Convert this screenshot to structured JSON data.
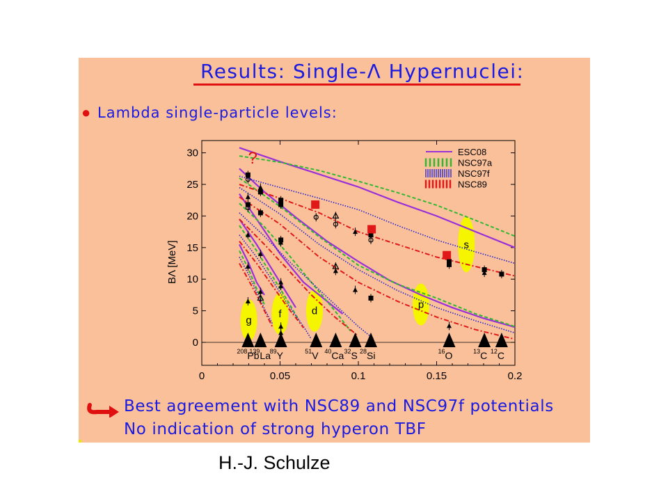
{
  "slide": {
    "title": "Results: Single-Λ Hypernuclei:",
    "bullet_text": "Lambda single-particle levels:",
    "conclusion_1": "Best agreement with NSC89 and NSC97f potentials",
    "conclusion_2": "No indication of strong hyperon TBF",
    "author": "H.-J. Schulze"
  },
  "colors": {
    "slide_bg": "#f9c09a",
    "title_text": "#1a1ae0",
    "accent_red": "#e01010",
    "esc08": "#9a30d8",
    "nsc97a": "#30b830",
    "nsc97f": "#2020d0",
    "nsc89": "#e01818",
    "highlight": "#f5f500"
  },
  "chart_data": {
    "type": "line",
    "title": "",
    "xlabel": "",
    "ylabel": "BΛ [MeV]",
    "xlim": [
      0,
      0.2
    ],
    "ylim": [
      -3,
      32
    ],
    "x_ticks": [
      "0",
      "0.05",
      "0.1",
      "0.15",
      "0.2"
    ],
    "y_ticks": [
      "0",
      "5",
      "10",
      "15",
      "20",
      "25",
      "30"
    ],
    "question_mark": "?",
    "legend": [
      {
        "name": "ESC08",
        "style": "solid",
        "color": "#9a30d8"
      },
      {
        "name": "NSC97a",
        "style": "dashed",
        "color": "#30b830"
      },
      {
        "name": "NSC97f",
        "style": "dotted",
        "color": "#2020d0"
      },
      {
        "name": "NSC89",
        "style": "dashdot",
        "color": "#e01818"
      }
    ],
    "shells": [
      {
        "label": "s",
        "x": 0.169,
        "y": 15.5
      },
      {
        "label": "p",
        "x": 0.14,
        "y": 6.0
      },
      {
        "label": "d",
        "x": 0.072,
        "y": 5.0
      },
      {
        "label": "f",
        "x": 0.05,
        "y": 4.5
      },
      {
        "label": "g",
        "x": 0.03,
        "y": 3.5
      }
    ],
    "nuclei": [
      {
        "mass": "208",
        "sym": "Pb",
        "x": 0.0295
      },
      {
        "mass": "139",
        "sym": "La",
        "x": 0.0375
      },
      {
        "mass": "89",
        "sym": "Y",
        "x": 0.0505
      },
      {
        "mass": "51",
        "sym": "V",
        "x": 0.073
      },
      {
        "mass": "40",
        "sym": "Ca",
        "x": 0.0855
      },
      {
        "mass": "32",
        "sym": "S",
        "x": 0.098
      },
      {
        "mass": "28",
        "sym": "Si",
        "x": 0.108
      },
      {
        "mass": "16",
        "sym": "O",
        "x": 0.158
      },
      {
        "mass": "13",
        "sym": "C",
        "x": 0.1805
      },
      {
        "mass": "12",
        "sym": "C",
        "x": 0.1915
      }
    ],
    "series": [
      {
        "model": "ESC08",
        "shell": "s",
        "x": [
          0.024,
          0.05,
          0.075,
          0.1,
          0.125,
          0.15,
          0.175,
          0.2
        ],
        "y": [
          30.8,
          28.6,
          26.6,
          24.6,
          22.2,
          20.0,
          17.5,
          15.0
        ]
      },
      {
        "model": "ESC08",
        "shell": "p",
        "x": [
          0.024,
          0.04,
          0.06,
          0.08,
          0.1,
          0.12,
          0.14,
          0.16,
          0.18,
          0.2
        ],
        "y": [
          27.5,
          23.8,
          19.8,
          16.0,
          12.8,
          9.8,
          7.5,
          5.5,
          3.8,
          2.4
        ]
      },
      {
        "model": "ESC08",
        "shell": "d",
        "x": [
          0.024,
          0.035,
          0.05,
          0.065,
          0.08,
          0.09
        ],
        "y": [
          23.5,
          19.5,
          14.0,
          9.5,
          6.5,
          4.5
        ]
      },
      {
        "model": "ESC08",
        "shell": "f",
        "x": [
          0.024,
          0.035,
          0.045,
          0.055,
          0.06
        ],
        "y": [
          19.5,
          15.5,
          11.5,
          7.5,
          5.5
        ]
      },
      {
        "model": "ESC08",
        "shell": "g",
        "x": [
          0.024,
          0.03,
          0.035,
          0.04
        ],
        "y": [
          15.5,
          12.5,
          9.5,
          7.5
        ]
      },
      {
        "model": "NSC97a",
        "shell": "s",
        "x": [
          0.024,
          0.05,
          0.075,
          0.1,
          0.125,
          0.15,
          0.175,
          0.2
        ],
        "y": [
          29.5,
          28.5,
          27.2,
          25.5,
          23.7,
          21.7,
          19.3,
          16.8
        ]
      },
      {
        "model": "NSC97a",
        "shell": "p",
        "x": [
          0.024,
          0.05,
          0.075,
          0.1,
          0.125,
          0.15,
          0.175,
          0.2
        ],
        "y": [
          26.0,
          21.5,
          16.7,
          12.2,
          9.2,
          7.0,
          4.5,
          2.5
        ]
      },
      {
        "model": "NSC97a",
        "shell": "d",
        "x": [
          0.024,
          0.04,
          0.055,
          0.07,
          0.085,
          0.095
        ],
        "y": [
          22.0,
          18.3,
          14.0,
          9.5,
          5.0,
          1.8
        ]
      },
      {
        "model": "NSC97a",
        "shell": "f",
        "x": [
          0.024,
          0.035,
          0.045,
          0.055,
          0.062
        ],
        "y": [
          18.5,
          14.5,
          10.5,
          6.5,
          3.5
        ]
      },
      {
        "model": "NSC97a",
        "shell": "g",
        "x": [
          0.024,
          0.03,
          0.035,
          0.04
        ],
        "y": [
          14.5,
          11.5,
          8.5,
          6.0
        ]
      },
      {
        "model": "NSC97f",
        "shell": "s",
        "x": [
          0.024,
          0.05,
          0.075,
          0.1,
          0.125,
          0.15,
          0.175,
          0.2
        ],
        "y": [
          26.3,
          24.5,
          22.8,
          21.0,
          18.5,
          16.2,
          14.3,
          12.5
        ]
      },
      {
        "model": "NSC97f",
        "shell": "p",
        "x": [
          0.024,
          0.05,
          0.075,
          0.1,
          0.125,
          0.15,
          0.175,
          0.2
        ],
        "y": [
          24.5,
          20.3,
          15.5,
          11.5,
          8.2,
          5.5,
          3.4,
          1.5
        ]
      },
      {
        "model": "NSC97f",
        "shell": "d",
        "x": [
          0.024,
          0.04,
          0.055,
          0.07,
          0.085,
          0.1,
          0.11
        ],
        "y": [
          20.5,
          16.8,
          13.0,
          9.5,
          6.0,
          2.5,
          0.5
        ]
      },
      {
        "model": "NSC97f",
        "shell": "f",
        "x": [
          0.024,
          0.035,
          0.045,
          0.055,
          0.065,
          0.07
        ],
        "y": [
          17.0,
          13.5,
          9.8,
          6.0,
          2.5,
          0.5
        ]
      },
      {
        "model": "NSC97f",
        "shell": "g",
        "x": [
          0.024,
          0.03,
          0.035,
          0.04,
          0.045
        ],
        "y": [
          13.5,
          10.7,
          8.0,
          5.3,
          3.0
        ]
      },
      {
        "model": "NSC89",
        "shell": "s",
        "x": [
          0.024,
          0.05,
          0.075,
          0.1,
          0.125,
          0.15,
          0.175,
          0.2
        ],
        "y": [
          25.0,
          22.8,
          20.5,
          17.5,
          15.5,
          13.5,
          12.0,
          10.5
        ]
      },
      {
        "model": "NSC89",
        "shell": "p",
        "x": [
          0.024,
          0.05,
          0.075,
          0.1,
          0.125,
          0.15,
          0.175,
          0.2
        ],
        "y": [
          23.0,
          18.7,
          13.5,
          9.5,
          6.5,
          4.0,
          2.0,
          0.5
        ]
      },
      {
        "model": "NSC89",
        "shell": "d",
        "x": [
          0.024,
          0.04,
          0.055,
          0.07,
          0.085,
          0.1
        ],
        "y": [
          19.5,
          15.5,
          11.5,
          7.5,
          4.0,
          1.0
        ]
      },
      {
        "model": "NSC89",
        "shell": "f",
        "x": [
          0.024,
          0.035,
          0.045,
          0.055,
          0.065
        ],
        "y": [
          16.0,
          12.5,
          9.0,
          5.5,
          2.3
        ]
      },
      {
        "model": "NSC89",
        "shell": "g",
        "x": [
          0.024,
          0.03,
          0.035,
          0.04,
          0.045
        ],
        "y": [
          12.5,
          9.8,
          7.5,
          5.0,
          2.5
        ]
      }
    ],
    "experiment_points": [
      {
        "x": 0.0295,
        "y": 26.5,
        "m": "sq"
      },
      {
        "x": 0.0295,
        "y": 25.8,
        "m": "circ"
      },
      {
        "x": 0.0295,
        "y": 23.0,
        "m": "tri"
      },
      {
        "x": 0.0295,
        "y": 21.8,
        "m": "sq"
      },
      {
        "x": 0.0295,
        "y": 21.3,
        "m": "circ"
      },
      {
        "x": 0.0295,
        "y": 17.0,
        "m": "tri"
      },
      {
        "x": 0.0295,
        "y": 12.0,
        "m": "tri"
      },
      {
        "x": 0.0295,
        "y": 6.5,
        "m": "tri"
      },
      {
        "x": 0.0375,
        "y": 24.5,
        "m": "tri"
      },
      {
        "x": 0.0375,
        "y": 23.8,
        "m": "sq"
      },
      {
        "x": 0.0375,
        "y": 20.5,
        "m": "sq"
      },
      {
        "x": 0.0375,
        "y": 14.0,
        "m": "tri"
      },
      {
        "x": 0.0375,
        "y": 8.0,
        "m": "tri"
      },
      {
        "x": 0.0375,
        "y": 7.0,
        "m": "otri"
      },
      {
        "x": 0.0505,
        "y": 22.5,
        "m": "sq"
      },
      {
        "x": 0.0505,
        "y": 21.8,
        "m": "sq"
      },
      {
        "x": 0.0505,
        "y": 16.2,
        "m": "sq"
      },
      {
        "x": 0.0505,
        "y": 15.8,
        "m": "tri"
      },
      {
        "x": 0.0505,
        "y": 9.5,
        "m": "tri"
      },
      {
        "x": 0.0505,
        "y": 8.9,
        "m": "tri"
      },
      {
        "x": 0.0505,
        "y": 2.5,
        "m": "tri"
      },
      {
        "x": 0.0505,
        "y": 1.5,
        "m": "tri"
      },
      {
        "x": 0.073,
        "y": 19.8,
        "m": "circ"
      },
      {
        "x": 0.0855,
        "y": 20.0,
        "m": "otri"
      },
      {
        "x": 0.0855,
        "y": 18.7,
        "m": "circ"
      },
      {
        "x": 0.0855,
        "y": 12.0,
        "m": "otri"
      },
      {
        "x": 0.0855,
        "y": 11.3,
        "m": "tri"
      },
      {
        "x": 0.098,
        "y": 17.5,
        "m": "tri"
      },
      {
        "x": 0.098,
        "y": 8.3,
        "m": "tri"
      },
      {
        "x": 0.108,
        "y": 17.0,
        "m": "sq"
      },
      {
        "x": 0.108,
        "y": 16.2,
        "m": "circ"
      },
      {
        "x": 0.108,
        "y": 7.0,
        "m": "sq"
      },
      {
        "x": 0.158,
        "y": 12.8,
        "m": "sq"
      },
      {
        "x": 0.158,
        "y": 12.3,
        "m": "sq"
      },
      {
        "x": 0.158,
        "y": 2.6,
        "m": "tri"
      },
      {
        "x": 0.1805,
        "y": 11.5,
        "m": "sq"
      },
      {
        "x": 0.1805,
        "y": 11.0,
        "m": "tri"
      },
      {
        "x": 0.1915,
        "y": 10.8,
        "m": "sq"
      }
    ],
    "red_squares": [
      {
        "x": 0.0725,
        "y": 21.8
      },
      {
        "x": 0.1085,
        "y": 17.9
      },
      {
        "x": 0.1565,
        "y": 13.8
      }
    ]
  }
}
